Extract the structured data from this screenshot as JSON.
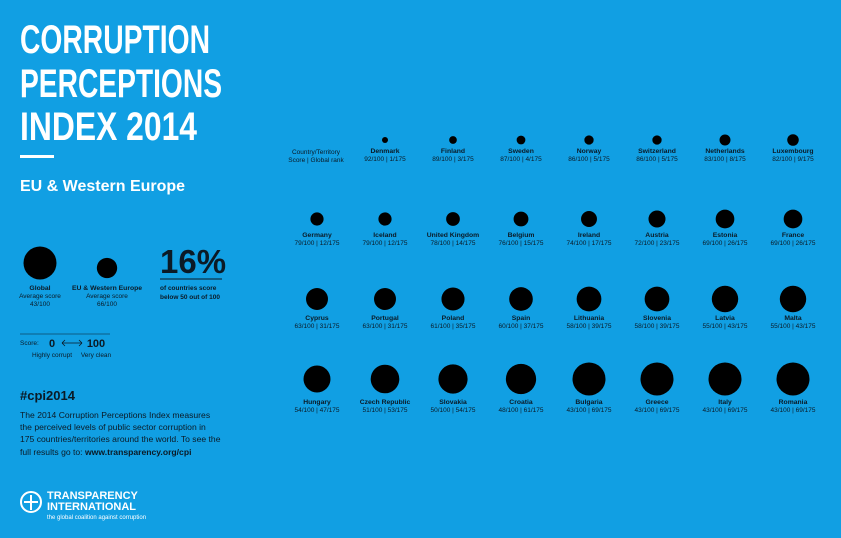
{
  "header": {
    "title_lines": [
      "CORRUPTION",
      "PERCEPTIONS",
      "INDEX 2014"
    ],
    "region": "EU & Western Europe"
  },
  "averages": [
    {
      "name": "Global",
      "caption": "Average score",
      "score": 43,
      "label": "43/100"
    },
    {
      "name": "EU & Western Europe",
      "caption": "Average score",
      "score": 66,
      "label": "66/100"
    }
  ],
  "stat": {
    "value": "16%",
    "caption_lines": [
      "of countries score",
      "below 50 out of 100"
    ]
  },
  "scale": {
    "label": "Score:",
    "min": 0,
    "max": 100,
    "min_caption": "Highly corrupt",
    "max_caption": "Very clean"
  },
  "column_header": [
    "Country/Territory",
    "Score | Global rank"
  ],
  "countries": [
    {
      "name": "Denmark",
      "score": 92,
      "label": "92/100 | 1/175"
    },
    {
      "name": "Finland",
      "score": 89,
      "label": "89/100 | 3/175"
    },
    {
      "name": "Sweden",
      "score": 87,
      "label": "87/100 | 4/175"
    },
    {
      "name": "Norway",
      "score": 86,
      "label": "86/100 | 5/175"
    },
    {
      "name": "Switzerland",
      "score": 86,
      "label": "86/100 | 5/175"
    },
    {
      "name": "Netherlands",
      "score": 83,
      "label": "83/100 | 8/175"
    },
    {
      "name": "Luxembourg",
      "score": 82,
      "label": "82/100 | 9/175"
    },
    {
      "name": "Germany",
      "score": 79,
      "label": "79/100 | 12/175"
    },
    {
      "name": "Iceland",
      "score": 79,
      "label": "79/100 | 12/175"
    },
    {
      "name": "United Kingdom",
      "score": 78,
      "label": "78/100 | 14/175"
    },
    {
      "name": "Belgium",
      "score": 76,
      "label": "76/100 | 15/175"
    },
    {
      "name": "Ireland",
      "score": 74,
      "label": "74/100 | 17/175"
    },
    {
      "name": "Austria",
      "score": 72,
      "label": "72/100 | 23/175"
    },
    {
      "name": "Estonia",
      "score": 69,
      "label": "69/100 | 26/175"
    },
    {
      "name": "France",
      "score": 69,
      "label": "69/100 | 26/175"
    },
    {
      "name": "Cyprus",
      "score": 63,
      "label": "63/100 | 31/175"
    },
    {
      "name": "Portugal",
      "score": 63,
      "label": "63/100 | 31/175"
    },
    {
      "name": "Poland",
      "score": 61,
      "label": "61/100 | 35/175"
    },
    {
      "name": "Spain",
      "score": 60,
      "label": "60/100 | 37/175"
    },
    {
      "name": "Lithuania",
      "score": 58,
      "label": "58/100 | 39/175"
    },
    {
      "name": "Slovenia",
      "score": 58,
      "label": "58/100 | 39/175"
    },
    {
      "name": "Latvia",
      "score": 55,
      "label": "55/100 | 43/175"
    },
    {
      "name": "Malta",
      "score": 55,
      "label": "55/100 | 43/175"
    },
    {
      "name": "Hungary",
      "score": 54,
      "label": "54/100 | 47/175"
    },
    {
      "name": "Czech Republic",
      "score": 51,
      "label": "51/100 | 53/175"
    },
    {
      "name": "Slovakia",
      "score": 50,
      "label": "50/100 | 54/175"
    },
    {
      "name": "Croatia",
      "score": 48,
      "label": "48/100 | 61/175"
    },
    {
      "name": "Bulgaria",
      "score": 43,
      "label": "43/100 | 69/175"
    },
    {
      "name": "Greece",
      "score": 43,
      "label": "43/100 | 69/175"
    },
    {
      "name": "Italy",
      "score": 43,
      "label": "43/100 | 69/175"
    },
    {
      "name": "Romania",
      "score": 43,
      "label": "43/100 | 69/175"
    }
  ],
  "hashtag": "#cpi2014",
  "description": [
    "The 2014 Corruption Perceptions Index measures",
    "the perceived levels of public sector corruption in",
    "175 countries/territories around the world. To see the"
  ],
  "description_end": "full results go to:",
  "url": "www.transparency.org/cpi",
  "logo": {
    "name_lines": [
      "TRANSPARENCY",
      "INTERNATIONAL"
    ],
    "tagline": "the global coalition against corruption"
  }
}
